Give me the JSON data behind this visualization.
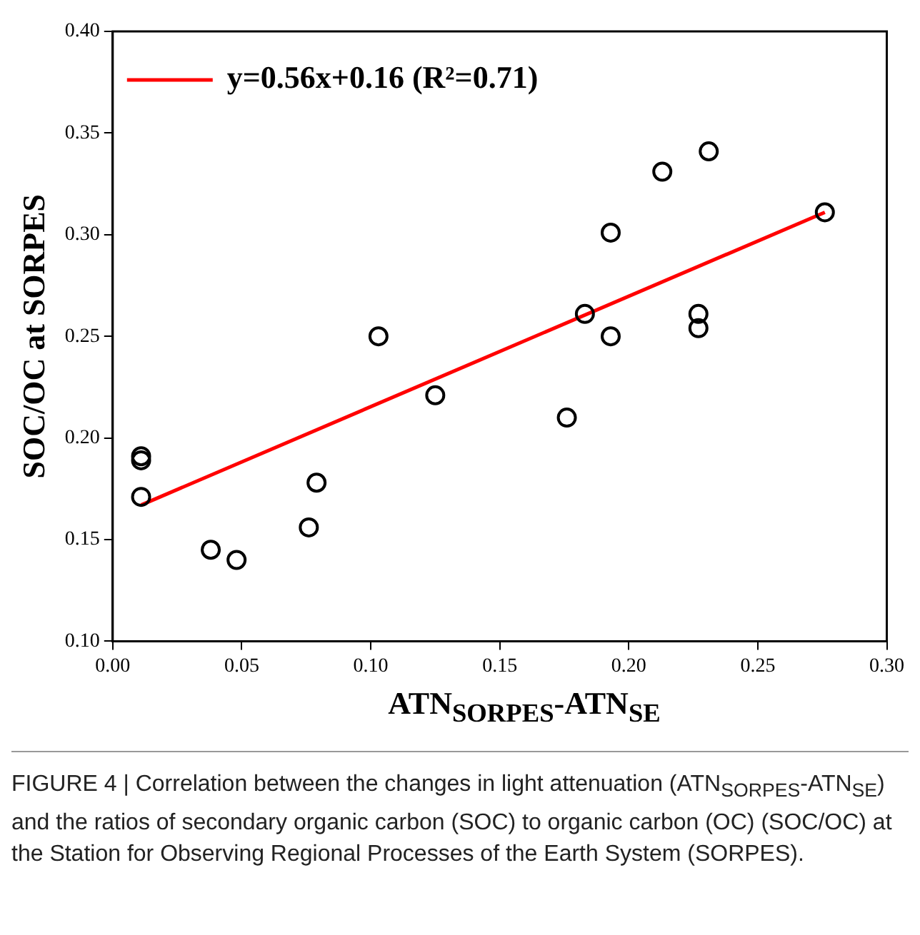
{
  "chart_data": {
    "type": "scatter",
    "xlabel": "ATN$_{SORPES}$-ATN$_{SE}$",
    "ylabel": "SOC/OC at SORPES",
    "xlim": [
      0,
      0.3
    ],
    "ylim": [
      0.1,
      0.4
    ],
    "xticks": [
      {
        "value": 0,
        "label": "0.00"
      },
      {
        "value": 0.05,
        "label": "0.05"
      },
      {
        "value": 0.1,
        "label": "0.10"
      },
      {
        "value": 0.15,
        "label": "0.15"
      },
      {
        "value": 0.2,
        "label": "0.20"
      },
      {
        "value": 0.25,
        "label": "0.25"
      },
      {
        "value": 0.3,
        "label": "0.30"
      }
    ],
    "yticks": [
      {
        "value": 0.1,
        "label": "0.10"
      },
      {
        "value": 0.15,
        "label": "0.15"
      },
      {
        "value": 0.2,
        "label": "0.20"
      },
      {
        "value": 0.25,
        "label": "0.25"
      },
      {
        "value": 0.3,
        "label": "0.30"
      },
      {
        "value": 0.35,
        "label": "0.35"
      },
      {
        "value": 0.4,
        "label": "0.40"
      }
    ],
    "grid": false,
    "legend": "top left",
    "series": [
      {
        "marker": "circle",
        "color": "#000000",
        "x": [
          0.011,
          0.011,
          0.011,
          0.038,
          0.048,
          0.076,
          0.079,
          0.103,
          0.125,
          0.176,
          0.183,
          0.193,
          0.193,
          0.213,
          0.227,
          0.227,
          0.231,
          0.276
        ],
        "values": [
          0.191,
          0.189,
          0.171,
          0.145,
          0.14,
          0.156,
          0.178,
          0.25,
          0.221,
          0.21,
          0.261,
          0.301,
          0.25,
          0.331,
          0.261,
          0.254,
          0.341,
          0.311
        ]
      },
      {
        "type": "line",
        "marker": "none",
        "name": "y=0.56x+0.16 (R²=0.71)",
        "color": "#ff0000",
        "x": [
          0.011,
          0.276
        ],
        "values": [
          0.167,
          0.311
        ]
      }
    ],
    "annotations": [
      "FIGURE 4 | Correlation between the changes in light attenuation (ATN$_{SORPES}$-ATN$_{SE}$) and the ratios of secondary organic carbon (SOC) to organic carbon (OC) (SOC/OC) at the Station for Observing Regional Processes of the Earth System (SORPES)."
    ]
  }
}
